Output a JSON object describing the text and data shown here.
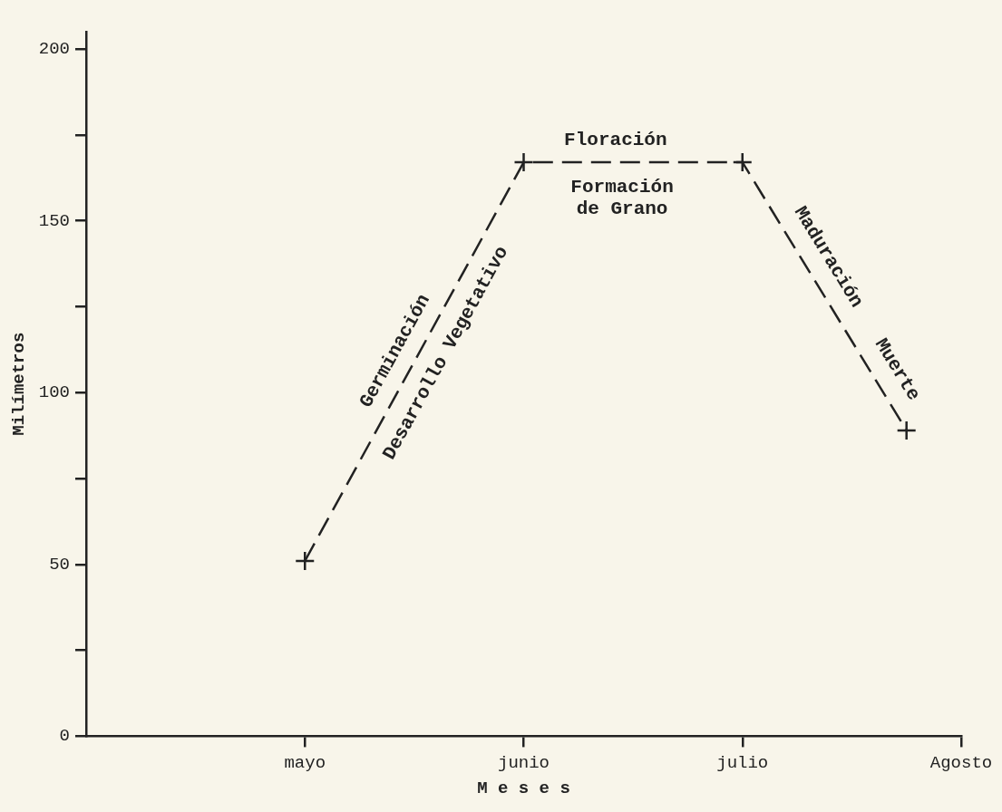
{
  "chart_data": {
    "type": "line",
    "xlabel": "M e s e s",
    "ylabel": "Milímetros",
    "categories": [
      null,
      null,
      null,
      null,
      "mayo",
      null,
      null,
      null,
      "junio",
      null,
      null,
      null,
      "julio",
      null,
      null,
      null,
      "Agosto"
    ],
    "series": [
      {
        "color": "#222222",
        "values": [
          null,
          null,
          null,
          null,
          51,
          null,
          null,
          null,
          167,
          null,
          null,
          null,
          167,
          null,
          null,
          89,
          null
        ]
      }
    ],
    "ylim": [
      0,
      205
    ],
    "yticks": [
      0,
      {
        "value": 25,
        "label": null
      },
      50,
      {
        "value": 75,
        "label": null
      },
      100,
      {
        "value": 125,
        "label": null
      },
      150,
      {
        "value": 175,
        "label": null
      },
      200
    ],
    "grid": false,
    "legend": false,
    "marker": "cross",
    "line_style": "dashed",
    "annotations": [
      "Germinación",
      "Desarrollo Vegetativo",
      "Floración",
      "Formación\nde Grano",
      "Maduración",
      "Muerte"
    ]
  }
}
